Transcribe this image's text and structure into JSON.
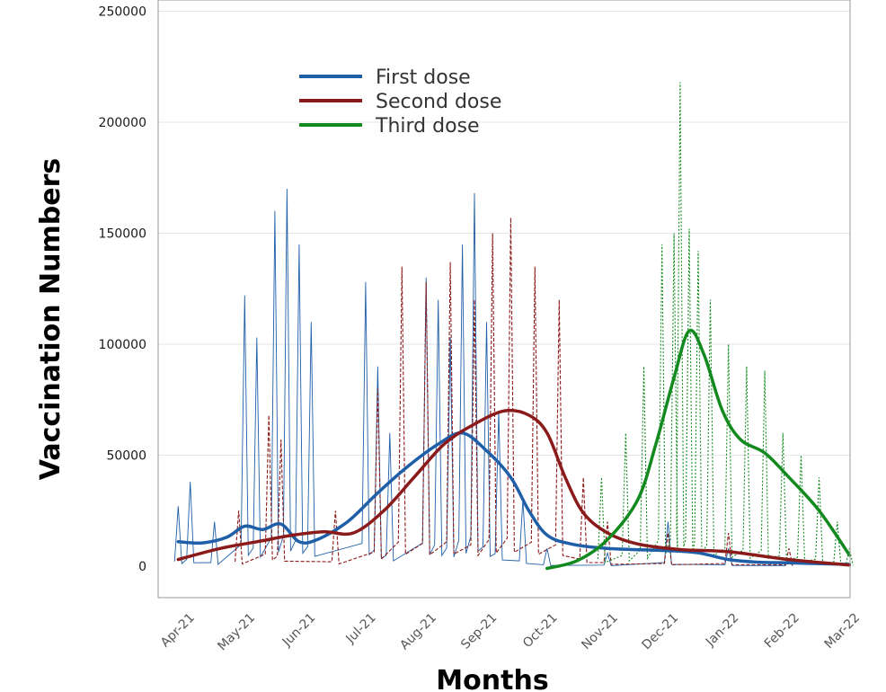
{
  "chart_data": {
    "type": "line",
    "xlabel": "Months",
    "ylabel": "Vaccination Numbers",
    "ylim": [
      -10000,
      250000
    ],
    "yticks": [
      0,
      50000,
      100000,
      150000,
      200000,
      250000
    ],
    "ytick_labels": [
      "0",
      "50000",
      "100000",
      "150000",
      "200000",
      "250000"
    ],
    "xticks": [
      "Apr-21",
      "May-21",
      "Jun-21",
      "Jul-21",
      "Aug-21",
      "Sep-21",
      "Oct-21",
      "Nov-21",
      "Dec-21",
      "Jan-22",
      "Feb-22",
      "Mar-22"
    ],
    "grid": "horizontal",
    "legend_position": "top-left",
    "series": [
      {
        "name": "First dose",
        "color": "#1f5fa8",
        "smooth": [
          [
            -0.1,
            11000
          ],
          [
            0.3,
            10500
          ],
          [
            0.7,
            13000
          ],
          [
            1.0,
            18000
          ],
          [
            1.3,
            16500
          ],
          [
            1.6,
            19000
          ],
          [
            1.9,
            11000
          ],
          [
            2.2,
            12000
          ],
          [
            2.7,
            20000
          ],
          [
            3.2,
            33000
          ],
          [
            3.7,
            45000
          ],
          [
            4.2,
            55000
          ],
          [
            4.6,
            60000
          ],
          [
            5.0,
            52000
          ],
          [
            5.4,
            40000
          ],
          [
            5.7,
            25000
          ],
          [
            6.0,
            14000
          ],
          [
            6.4,
            10000
          ],
          [
            7.0,
            8000
          ],
          [
            8.0,
            7000
          ],
          [
            8.5,
            6000
          ],
          [
            9.0,
            3000
          ],
          [
            9.5,
            1800
          ],
          [
            10.0,
            1500
          ],
          [
            11.0,
            800
          ]
        ],
        "daily_peaks": [
          [
            -0.1,
            27000
          ],
          [
            0.1,
            38000
          ],
          [
            0.5,
            20000
          ],
          [
            1.0,
            122000
          ],
          [
            1.2,
            103000
          ],
          [
            1.5,
            160000
          ],
          [
            1.7,
            170000
          ],
          [
            1.9,
            145000
          ],
          [
            2.1,
            110000
          ],
          [
            3.0,
            128000
          ],
          [
            3.2,
            90000
          ],
          [
            3.4,
            60000
          ],
          [
            4.0,
            130000
          ],
          [
            4.2,
            120000
          ],
          [
            4.4,
            103000
          ],
          [
            4.6,
            145000
          ],
          [
            4.8,
            168000
          ],
          [
            5.0,
            110000
          ],
          [
            5.2,
            70000
          ],
          [
            5.6,
            30000
          ],
          [
            6.0,
            8000
          ],
          [
            7.0,
            6000
          ],
          [
            8.0,
            20000
          ],
          [
            9.0,
            8000
          ],
          [
            10.0,
            3000
          ]
        ]
      },
      {
        "name": "Second dose",
        "color": "#8b1a1a",
        "smooth": [
          [
            -0.1,
            3000
          ],
          [
            0.6,
            8000
          ],
          [
            1.2,
            11000
          ],
          [
            1.8,
            14000
          ],
          [
            2.3,
            15500
          ],
          [
            2.8,
            15000
          ],
          [
            3.3,
            25000
          ],
          [
            3.8,
            40000
          ],
          [
            4.3,
            55000
          ],
          [
            4.8,
            64000
          ],
          [
            5.3,
            70000
          ],
          [
            5.7,
            68000
          ],
          [
            6.0,
            60000
          ],
          [
            6.3,
            40000
          ],
          [
            6.6,
            24000
          ],
          [
            7.0,
            15000
          ],
          [
            7.5,
            10000
          ],
          [
            8.2,
            7500
          ],
          [
            9.0,
            6500
          ],
          [
            10.0,
            3000
          ],
          [
            11.0,
            500
          ]
        ],
        "daily_peaks": [
          [
            0.9,
            25000
          ],
          [
            1.4,
            68000
          ],
          [
            1.6,
            57000
          ],
          [
            2.5,
            25000
          ],
          [
            3.2,
            80000
          ],
          [
            3.6,
            135000
          ],
          [
            4.0,
            128000
          ],
          [
            4.4,
            137000
          ],
          [
            4.8,
            120000
          ],
          [
            5.1,
            150000
          ],
          [
            5.4,
            157000
          ],
          [
            5.8,
            135000
          ],
          [
            6.2,
            120000
          ],
          [
            6.6,
            40000
          ],
          [
            7.0,
            20000
          ],
          [
            8.0,
            15000
          ],
          [
            9.0,
            15000
          ],
          [
            10.0,
            8000
          ]
        ]
      },
      {
        "name": "Third dose",
        "color": "#138a1f",
        "smooth": [
          [
            6.0,
            -1000
          ],
          [
            6.5,
            2500
          ],
          [
            7.0,
            12000
          ],
          [
            7.5,
            30000
          ],
          [
            7.8,
            55000
          ],
          [
            8.1,
            85000
          ],
          [
            8.35,
            106000
          ],
          [
            8.6,
            95000
          ],
          [
            8.9,
            70000
          ],
          [
            9.2,
            57000
          ],
          [
            9.6,
            51000
          ],
          [
            10.0,
            40000
          ],
          [
            10.5,
            25000
          ],
          [
            11.0,
            5000
          ]
        ],
        "daily_peaks": [
          [
            6.9,
            40000
          ],
          [
            7.3,
            60000
          ],
          [
            7.6,
            90000
          ],
          [
            7.9,
            145000
          ],
          [
            8.1,
            150000
          ],
          [
            8.2,
            218000
          ],
          [
            8.35,
            152000
          ],
          [
            8.5,
            142000
          ],
          [
            8.7,
            120000
          ],
          [
            9.0,
            100000
          ],
          [
            9.3,
            90000
          ],
          [
            9.6,
            88000
          ],
          [
            9.9,
            60000
          ],
          [
            10.2,
            50000
          ],
          [
            10.5,
            40000
          ],
          [
            10.8,
            20000
          ],
          [
            11.0,
            8000
          ]
        ]
      }
    ]
  }
}
